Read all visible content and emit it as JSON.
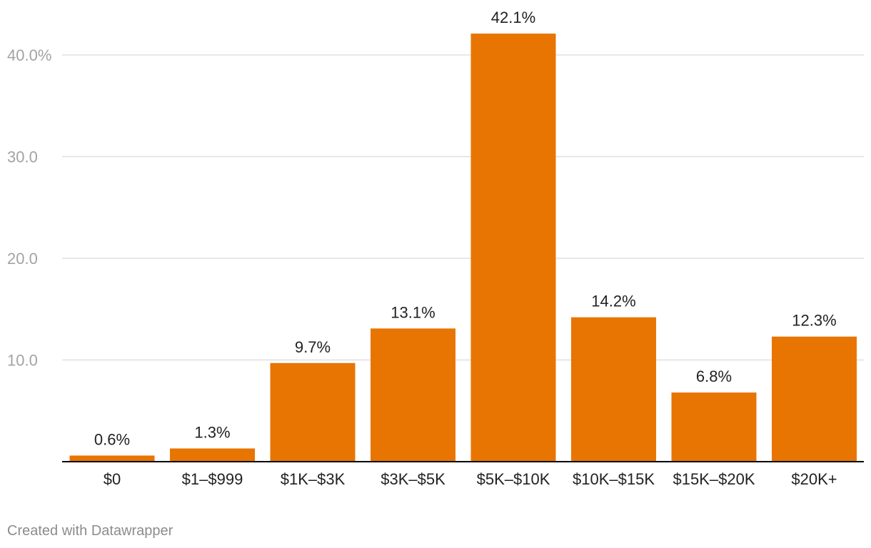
{
  "chart_data": {
    "type": "bar",
    "categories": [
      "$0",
      "$1–$999",
      "$1K–$3K",
      "$3K–$5K",
      "$5K–$10K",
      "$10K–$15K",
      "$15K–$20K",
      "$20K+"
    ],
    "values": [
      0.6,
      1.3,
      9.7,
      13.1,
      42.1,
      14.2,
      6.8,
      12.3
    ],
    "value_labels": [
      "0.6%",
      "1.3%",
      "9.7%",
      "13.1%",
      "42.1%",
      "14.2%",
      "6.8%",
      "12.3%"
    ],
    "y_ticks": [
      10,
      20,
      30,
      40
    ],
    "y_tick_labels": [
      "10.0",
      "20.0",
      "30.0",
      "40.0%"
    ],
    "ylim": [
      0,
      45
    ],
    "grid": true,
    "bar_color": "#e87502",
    "gridline_color": "#e0e0e0",
    "tick_label_color": "#a3a3a3",
    "axis_color": "#000000"
  },
  "footer": {
    "credit": "Created with Datawrapper"
  }
}
